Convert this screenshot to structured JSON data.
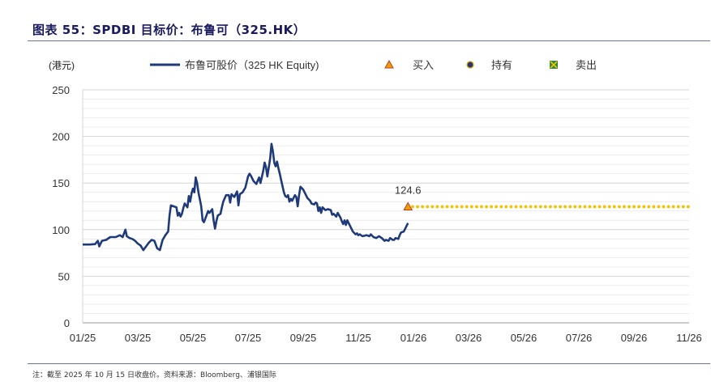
{
  "header": {
    "title": "图表 55：SPDBI 目标价：布鲁可（325.HK）"
  },
  "footer": {
    "note": "注：截至 2025 年 10 月 15 日收盘价。资料来源：Bloomberg、浦银国际"
  },
  "chart_data": {
    "type": "line",
    "ylabel": "(港元)",
    "ylim": [
      0,
      250
    ],
    "yticks": [
      0,
      50,
      100,
      150,
      200,
      250
    ],
    "x_tick_labels": [
      "01/25",
      "03/25",
      "05/25",
      "07/25",
      "09/25",
      "11/25",
      "01/26",
      "03/26",
      "05/26",
      "07/26",
      "09/26",
      "11/26"
    ],
    "x_range_months": [
      0,
      22
    ],
    "grid": true,
    "legend": {
      "position": "top",
      "entries": [
        {
          "name": "布鲁可股价（325 HK Equity)",
          "marker": "line"
        },
        {
          "name": "买入",
          "marker": "triangle"
        },
        {
          "name": "持有",
          "marker": "circle"
        },
        {
          "name": "卖出",
          "marker": "x-square"
        }
      ]
    },
    "series": [
      {
        "name": "布鲁可股价（325 HK Equity)",
        "color": "#1f3a7a",
        "points": [
          [
            0.0,
            84
          ],
          [
            0.25,
            84
          ],
          [
            0.45,
            84.5
          ],
          [
            0.55,
            88
          ],
          [
            0.6,
            82
          ],
          [
            0.7,
            88
          ],
          [
            0.85,
            89
          ],
          [
            1.0,
            92
          ],
          [
            1.2,
            92
          ],
          [
            1.35,
            94
          ],
          [
            1.45,
            92
          ],
          [
            1.55,
            100
          ],
          [
            1.6,
            93
          ],
          [
            1.7,
            91
          ],
          [
            1.8,
            90
          ],
          [
            1.9,
            88
          ],
          [
            2.0,
            85
          ],
          [
            2.1,
            83
          ],
          [
            2.2,
            78
          ],
          [
            2.3,
            82
          ],
          [
            2.4,
            86
          ],
          [
            2.5,
            89
          ],
          [
            2.6,
            88
          ],
          [
            2.7,
            80
          ],
          [
            2.8,
            78
          ],
          [
            2.9,
            89
          ],
          [
            3.0,
            94
          ],
          [
            3.1,
            98
          ],
          [
            3.15,
            115
          ],
          [
            3.2,
            126
          ],
          [
            3.3,
            125
          ],
          [
            3.4,
            124
          ],
          [
            3.45,
            115
          ],
          [
            3.5,
            118
          ],
          [
            3.55,
            114
          ],
          [
            3.6,
            117
          ],
          [
            3.65,
            123
          ],
          [
            3.7,
            128
          ],
          [
            3.8,
            124
          ],
          [
            3.85,
            136
          ],
          [
            3.9,
            130
          ],
          [
            3.95,
            139
          ],
          [
            4.0,
            144
          ],
          [
            4.05,
            140
          ],
          [
            4.1,
            156
          ],
          [
            4.15,
            150
          ],
          [
            4.2,
            140
          ],
          [
            4.3,
            125
          ],
          [
            4.35,
            110
          ],
          [
            4.4,
            108
          ],
          [
            4.5,
            116
          ],
          [
            4.55,
            120
          ],
          [
            4.6,
            118
          ],
          [
            4.7,
            122
          ],
          [
            4.75,
            110
          ],
          [
            4.8,
            101
          ],
          [
            4.85,
            109
          ],
          [
            4.9,
            115
          ],
          [
            5.0,
            117
          ],
          [
            5.05,
            124
          ],
          [
            5.1,
            130
          ],
          [
            5.2,
            137
          ],
          [
            5.3,
            137
          ],
          [
            5.35,
            129
          ],
          [
            5.4,
            138
          ],
          [
            5.5,
            135
          ],
          [
            5.6,
            141
          ],
          [
            5.65,
            126
          ],
          [
            5.7,
            138
          ],
          [
            5.8,
            140
          ],
          [
            5.9,
            145
          ],
          [
            6.0,
            157
          ],
          [
            6.05,
            160
          ],
          [
            6.1,
            158
          ],
          [
            6.15,
            155
          ],
          [
            6.2,
            152
          ],
          [
            6.3,
            149
          ],
          [
            6.4,
            156
          ],
          [
            6.45,
            150
          ],
          [
            6.55,
            163
          ],
          [
            6.6,
            172
          ],
          [
            6.65,
            167
          ],
          [
            6.7,
            157
          ],
          [
            6.8,
            176
          ],
          [
            6.85,
            192
          ],
          [
            6.9,
            184
          ],
          [
            6.95,
            172
          ],
          [
            7.0,
            168
          ],
          [
            7.05,
            173
          ],
          [
            7.1,
            166
          ],
          [
            7.15,
            160
          ],
          [
            7.2,
            153
          ],
          [
            7.3,
            140
          ],
          [
            7.35,
            136
          ],
          [
            7.4,
            135
          ],
          [
            7.45,
            137
          ],
          [
            7.5,
            130
          ],
          [
            7.55,
            133
          ],
          [
            7.6,
            131
          ],
          [
            7.7,
            137
          ],
          [
            7.75,
            135
          ],
          [
            7.8,
            125
          ],
          [
            7.85,
            137
          ],
          [
            7.9,
            146
          ],
          [
            8.0,
            143
          ],
          [
            8.05,
            140
          ],
          [
            8.15,
            134
          ],
          [
            8.25,
            131
          ],
          [
            8.3,
            128
          ],
          [
            8.4,
            127
          ],
          [
            8.45,
            129
          ],
          [
            8.5,
            128
          ],
          [
            8.55,
            120
          ],
          [
            8.6,
            124
          ],
          [
            8.65,
            118
          ],
          [
            8.7,
            124
          ],
          [
            8.8,
            121
          ],
          [
            8.9,
            122
          ],
          [
            9.0,
            121
          ],
          [
            9.05,
            116
          ],
          [
            9.1,
            117
          ],
          [
            9.2,
            114
          ],
          [
            9.25,
            118
          ],
          [
            9.35,
            113
          ],
          [
            9.4,
            109
          ],
          [
            9.45,
            106
          ],
          [
            9.5,
            110
          ],
          [
            9.55,
            105
          ],
          [
            9.6,
            110
          ],
          [
            9.7,
            104
          ],
          [
            9.8,
            98
          ],
          [
            9.9,
            95
          ],
          [
            9.95,
            96
          ],
          [
            10.0,
            94
          ],
          [
            10.05,
            95
          ],
          [
            10.15,
            93
          ],
          [
            10.3,
            94
          ],
          [
            10.4,
            93
          ],
          [
            10.45,
            95
          ],
          [
            10.55,
            92
          ],
          [
            10.65,
            91
          ],
          [
            10.75,
            93
          ],
          [
            10.85,
            91
          ],
          [
            10.95,
            88
          ],
          [
            11.0,
            89
          ],
          [
            11.1,
            88
          ],
          [
            11.15,
            91
          ],
          [
            11.25,
            89
          ],
          [
            11.3,
            89
          ],
          [
            11.35,
            91
          ],
          [
            11.45,
            90
          ],
          [
            11.5,
            94
          ],
          [
            11.55,
            97
          ],
          [
            11.65,
            98
          ],
          [
            11.75,
            104
          ],
          [
            11.8,
            107
          ]
        ]
      }
    ],
    "target_price": {
      "value": 124.6,
      "label": "124.6",
      "rating": "买入",
      "start_month": 11.8,
      "end_month": 22.0,
      "color": "#f2c200"
    }
  }
}
